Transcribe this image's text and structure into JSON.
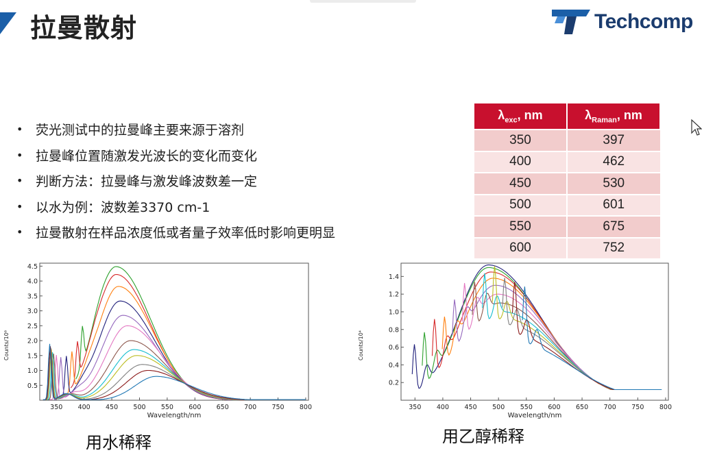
{
  "slide": {
    "title": "拉曼散射",
    "logo_text": "Techcomp",
    "accent_color": "#1b5fa8",
    "table_header_color": "#c8102e"
  },
  "bullets": [
    "荧光测试中的拉曼峰主要来源于溶剂",
    "拉曼峰位置随激发光波长的变化而变化",
    "判断方法：拉曼峰与激发峰波数差一定",
    "以水为例：波数差3370 cm-1",
    "拉曼散射在样品浓度低或者量子效率低时影响更明显"
  ],
  "table": {
    "col1_symbol": "λ",
    "col1_sub": "exc",
    "col1_unit": ", nm",
    "col2_symbol": "λ",
    "col2_sub": "Raman",
    "col2_unit": ", nm",
    "rows": [
      [
        "350",
        "397"
      ],
      [
        "400",
        "462"
      ],
      [
        "450",
        "530"
      ],
      [
        "500",
        "601"
      ],
      [
        "550",
        "675"
      ],
      [
        "600",
        "752"
      ]
    ]
  },
  "charts": {
    "water": {
      "caption": "用水稀释"
    },
    "ethanol": {
      "caption": "用乙醇稀释"
    }
  },
  "chart_data": [
    {
      "type": "line",
      "xlabel": "Wavelength/nm",
      "ylabel": "Counts/10⁶",
      "xlim": [
        320,
        805
      ],
      "ylim": [
        0,
        4.6
      ],
      "xticks": [
        350,
        400,
        450,
        500,
        550,
        600,
        650,
        700,
        750,
        800
      ],
      "yticks": [
        0.5,
        1.0,
        1.5,
        2.0,
        2.5,
        3.0,
        3.5,
        4.0,
        4.5
      ],
      "grid": false,
      "series": [
        {
          "color": "#2ca02c",
          "peak_x": 458,
          "peak_y": 4.48,
          "raman_x": 397,
          "raman_y": 1.25
        },
        {
          "color": "#d62728",
          "peak_x": 458,
          "peak_y": 4.22,
          "raman_x": 388,
          "raman_y": 1.2
        },
        {
          "color": "#ff7f0e",
          "peak_x": 462,
          "peak_y": 3.82,
          "raman_x": 378,
          "raman_y": 1.3
        },
        {
          "color": "#1f1f7a",
          "peak_x": 465,
          "peak_y": 3.33,
          "raman_x": 368,
          "raman_y": 1.35
        },
        {
          "color": "#9467bd",
          "peak_x": 470,
          "peak_y": 2.85,
          "raman_x": 358,
          "raman_y": 1.4
        },
        {
          "color": "#e377c2",
          "peak_x": 478,
          "peak_y": 2.5,
          "raman_x": 350,
          "raman_y": 1.5
        },
        {
          "color": "#8c564b",
          "peak_x": 484,
          "peak_y": 2.0,
          "raman_x": 345,
          "raman_y": 1.55
        },
        {
          "color": "#17becf",
          "peak_x": 490,
          "peak_y": 1.7,
          "raman_x": 343,
          "raman_y": 1.6
        },
        {
          "color": "#bcbd22",
          "peak_x": 495,
          "peak_y": 1.5,
          "raman_x": 341,
          "raman_y": 1.7
        },
        {
          "color": "#7f7f7f",
          "peak_x": 505,
          "peak_y": 1.2,
          "raman_x": 340,
          "raman_y": 1.75
        },
        {
          "color": "#8b1a1a",
          "peak_x": 515,
          "peak_y": 1.0,
          "raman_x": 339,
          "raman_y": 1.8
        },
        {
          "color": "#1f77b4",
          "peak_x": 530,
          "peak_y": 0.8,
          "raman_x": 338,
          "raman_y": 1.88
        }
      ]
    },
    {
      "type": "line",
      "xlabel": "Wavelength/nm",
      "ylabel": "Counts/10⁴",
      "xlim": [
        325,
        805
      ],
      "ylim": [
        0,
        1.55
      ],
      "xticks": [
        350,
        400,
        450,
        500,
        550,
        600,
        650,
        700,
        750,
        800
      ],
      "yticks": [
        0.2,
        0.4,
        0.6,
        0.8,
        1.0,
        1.2,
        1.4
      ],
      "grid": false,
      "series": [
        {
          "color": "#1f1f7a",
          "peak_x": 482,
          "peak_y": 1.53
        },
        {
          "color": "#2ca02c",
          "peak_x": 482,
          "peak_y": 1.5
        },
        {
          "color": "#d62728",
          "peak_x": 486,
          "peak_y": 1.45
        },
        {
          "color": "#ff7f0e",
          "peak_x": 490,
          "peak_y": 1.38
        },
        {
          "color": "#9467bd",
          "peak_x": 494,
          "peak_y": 1.3
        },
        {
          "color": "#e377c2",
          "peak_x": 498,
          "peak_y": 1.2
        },
        {
          "color": "#8c564b",
          "peak_x": 502,
          "peak_y": 1.1
        },
        {
          "color": "#17becf",
          "peak_x": 508,
          "peak_y": 1.0
        },
        {
          "color": "#bcbd22",
          "peak_x": 512,
          "peak_y": 0.92
        },
        {
          "color": "#7f7f7f",
          "peak_x": 518,
          "peak_y": 0.84
        },
        {
          "color": "#8b1a1a",
          "peak_x": 524,
          "peak_y": 0.74
        },
        {
          "color": "#1f77b4",
          "peak_x": 535,
          "peak_y": 0.64
        }
      ]
    }
  ]
}
